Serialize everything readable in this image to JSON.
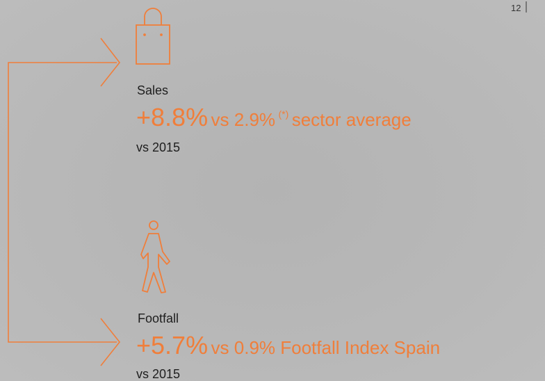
{
  "page_number": "12",
  "items": [
    {
      "label": "Sales",
      "value": "+8.8%",
      "comparison": "vs 2.9%",
      "note": "(*)",
      "comparison_rest": "sector average",
      "baseline": "vs 2015"
    },
    {
      "label": "Footfall",
      "value": "+5.7%",
      "comparison": "vs 0.9% Footfall Index Spain",
      "baseline": "vs 2015"
    }
  ]
}
